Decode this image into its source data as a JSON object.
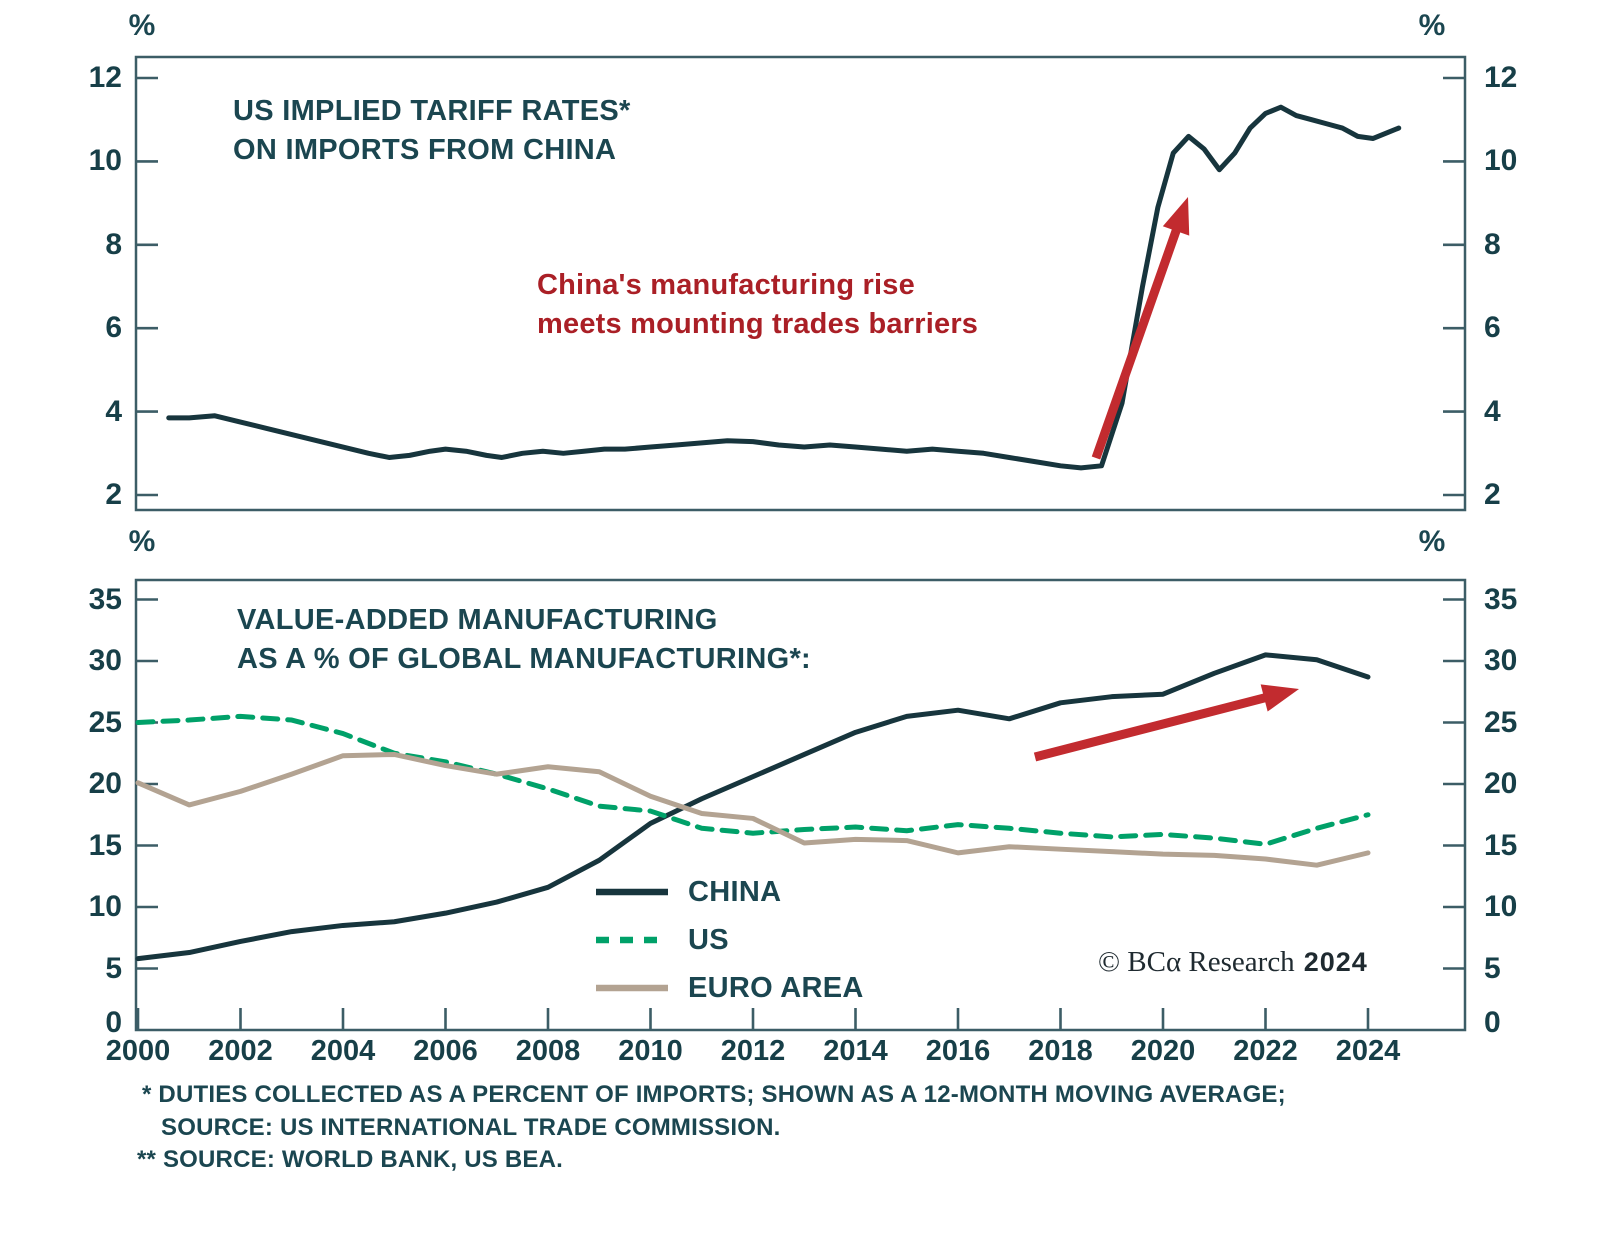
{
  "branding": {
    "copyright_serif": "© BCα Research",
    "year": "2024"
  },
  "top_chart": {
    "unit_label": "%",
    "title_line1": "US IMPLIED TARIFF RATES*",
    "title_line2": "ON IMPORTS FROM CHINA",
    "annotation_line1": "China's manufacturing rise",
    "annotation_line2": "meets mounting trades barriers",
    "y_ticks": [
      2,
      4,
      6,
      8,
      10,
      12
    ]
  },
  "bottom_chart": {
    "unit_label": "%",
    "title_line1": "VALUE-ADDED MANUFACTURING",
    "title_line2": "AS A % OF GLOBAL MANUFACTURING*:",
    "y_ticks": [
      0,
      5,
      10,
      15,
      20,
      25,
      30,
      35
    ],
    "x_ticks": [
      2000,
      2002,
      2004,
      2006,
      2008,
      2010,
      2012,
      2014,
      2016,
      2018,
      2020,
      2022,
      2024
    ],
    "legend": [
      {
        "label": "CHINA",
        "color": "#17353d",
        "style": "solid"
      },
      {
        "label": "US",
        "color": "#00a169",
        "style": "dashed"
      },
      {
        "label": "EURO AREA",
        "color": "#b3a392",
        "style": "solid"
      }
    ]
  },
  "footnotes": [
    "* DUTIES COLLECTED AS A PERCENT OF IMPORTS; SHOWN AS A 12-MONTH MOVING AVERAGE;",
    "SOURCE: US INTERNATIONAL TRADE COMMISSION.",
    "** SOURCE: WORLD BANK, US BEA."
  ],
  "colors": {
    "teal_line": "#17353d",
    "axis": "#3c5d66",
    "red_arrow": "#c22b2f",
    "red_text": "#aa1f26",
    "us_green": "#00a169",
    "euro_tan": "#b3a392"
  },
  "chart_data": [
    {
      "type": "line",
      "title": "US IMPLIED TARIFF RATES* ON IMPORTS FROM CHINA",
      "ylabel": "%",
      "ylim": [
        1.6,
        12.5
      ],
      "xlim": [
        2000,
        2025.9
      ],
      "x_tick_labels": [
        2000,
        2002,
        2004,
        2006,
        2008,
        2010,
        2012,
        2014,
        2016,
        2018,
        2020,
        2022,
        2024
      ],
      "annotation": "China's manufacturing rise meets mounting trades barriers",
      "series": [
        {
          "name": "US implied tariff rate on imports from China",
          "x": [
            2000.6,
            2001,
            2001.5,
            2002,
            2002.5,
            2003,
            2003.5,
            2004,
            2004.5,
            2004.9,
            2005.3,
            2005.7,
            2006,
            2006.4,
            2006.8,
            2007.1,
            2007.5,
            2007.9,
            2008.3,
            2008.7,
            2009.1,
            2009.5,
            2010,
            2010.5,
            2011,
            2011.5,
            2012,
            2012.5,
            2013,
            2013.5,
            2014,
            2014.5,
            2015,
            2015.5,
            2016,
            2016.5,
            2017,
            2017.5,
            2018,
            2018.4,
            2018.8,
            2019.2,
            2019.6,
            2019.9,
            2020.2,
            2020.5,
            2020.8,
            2021.1,
            2021.4,
            2021.7,
            2022,
            2022.3,
            2022.6,
            2022.9,
            2023.2,
            2023.5,
            2023.8,
            2024.1,
            2024.4,
            2024.6
          ],
          "y": [
            3.85,
            3.85,
            3.9,
            3.75,
            3.6,
            3.45,
            3.3,
            3.15,
            3.0,
            2.9,
            2.95,
            3.05,
            3.1,
            3.05,
            2.95,
            2.9,
            3.0,
            3.05,
            3.0,
            3.05,
            3.1,
            3.1,
            3.15,
            3.2,
            3.25,
            3.3,
            3.28,
            3.2,
            3.15,
            3.2,
            3.15,
            3.1,
            3.05,
            3.1,
            3.05,
            3.0,
            2.9,
            2.8,
            2.7,
            2.65,
            2.7,
            4.2,
            7.0,
            8.9,
            10.2,
            10.6,
            10.3,
            9.8,
            10.2,
            10.8,
            11.15,
            11.3,
            11.1,
            11.0,
            10.9,
            10.8,
            10.6,
            10.55,
            10.7,
            10.8
          ]
        }
      ]
    },
    {
      "type": "line",
      "title": "VALUE-ADDED MANUFACTURING AS A % OF GLOBAL MANUFACTURING*:",
      "ylabel": "%",
      "ylim": [
        0,
        36.5
      ],
      "xlim": [
        2000,
        2025.9
      ],
      "legend_position": "lower-center",
      "categories": [
        2000,
        2001,
        2002,
        2003,
        2004,
        2005,
        2006,
        2007,
        2008,
        2009,
        2010,
        2011,
        2012,
        2013,
        2014,
        2015,
        2016,
        2017,
        2018,
        2019,
        2020,
        2021,
        2022,
        2023,
        2024
      ],
      "series": [
        {
          "name": "CHINA",
          "values": [
            5.8,
            6.3,
            7.2,
            8.0,
            8.5,
            8.8,
            9.5,
            10.4,
            11.6,
            13.8,
            16.8,
            18.8,
            20.6,
            22.4,
            24.2,
            25.5,
            26.0,
            25.3,
            26.6,
            27.1,
            27.3,
            29.0,
            30.5,
            30.1,
            28.7
          ]
        },
        {
          "name": "US",
          "values": [
            25.0,
            25.2,
            25.5,
            25.2,
            24.1,
            22.5,
            21.8,
            20.8,
            19.6,
            18.2,
            17.8,
            16.4,
            16.0,
            16.3,
            16.5,
            16.2,
            16.7,
            16.4,
            16.0,
            15.7,
            15.9,
            15.6,
            15.1,
            16.4,
            17.5
          ]
        },
        {
          "name": "EURO AREA",
          "values": [
            20.1,
            18.3,
            19.4,
            20.8,
            22.3,
            22.4,
            21.5,
            20.8,
            21.4,
            21.0,
            19.0,
            17.6,
            17.2,
            15.2,
            15.5,
            15.4,
            14.4,
            14.9,
            14.7,
            14.5,
            14.3,
            14.2,
            13.9,
            13.4,
            14.4
          ]
        }
      ]
    }
  ]
}
